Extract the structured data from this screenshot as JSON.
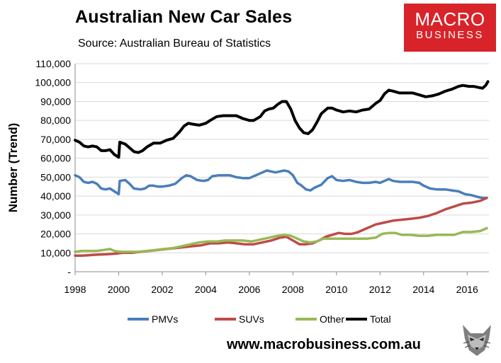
{
  "header": {
    "title": "Australian New Car Sales",
    "subtitle": "Source: Australian Bureau of Statistics"
  },
  "logo": {
    "line1": "MACRO",
    "line2": "BUSINESS",
    "bg_color": "#d8232a"
  },
  "footer": {
    "url": "www.macrobusiness.com.au",
    "icon": "wolf-icon"
  },
  "chart_data": {
    "type": "line",
    "title": "Australian New Car Sales",
    "xlabel": "",
    "ylabel": "Number (Trend)",
    "xlim": [
      1998,
      2017
    ],
    "ylim": [
      0,
      110000
    ],
    "x_ticks": [
      1998,
      2000,
      2002,
      2004,
      2006,
      2008,
      2010,
      2012,
      2014,
      2016
    ],
    "x_tick_labels": [
      "1998",
      "2000",
      "2002",
      "2004",
      "2006",
      "2008",
      "2010",
      "2012",
      "2014",
      "2016"
    ],
    "y_ticks": [
      0,
      10000,
      20000,
      30000,
      40000,
      50000,
      60000,
      70000,
      80000,
      90000,
      100000,
      110000
    ],
    "y_tick_labels": [
      "-",
      "10,000",
      "20,000",
      "30,000",
      "40,000",
      "50,000",
      "60,000",
      "70,000",
      "80,000",
      "90,000",
      "100,000",
      "110,000"
    ],
    "grid": "horizontal",
    "legend_position": "bottom",
    "series": [
      {
        "name": "PMVs",
        "color": "#4a7ebb",
        "points": [
          [
            1998.0,
            51000
          ],
          [
            1998.2,
            50000
          ],
          [
            1998.4,
            47500
          ],
          [
            1998.6,
            47000
          ],
          [
            1998.8,
            47500
          ],
          [
            1999.0,
            46500
          ],
          [
            1999.2,
            44000
          ],
          [
            1999.4,
            43500
          ],
          [
            1999.6,
            44000
          ],
          [
            1999.8,
            42500
          ],
          [
            2000.0,
            41000
          ],
          [
            2000.05,
            48000
          ],
          [
            2000.3,
            48500
          ],
          [
            2000.5,
            46500
          ],
          [
            2000.7,
            44000
          ],
          [
            2001.0,
            43500
          ],
          [
            2001.2,
            44000
          ],
          [
            2001.4,
            45500
          ],
          [
            2001.6,
            45500
          ],
          [
            2001.8,
            45000
          ],
          [
            2002.0,
            45000
          ],
          [
            2002.3,
            45500
          ],
          [
            2002.6,
            46500
          ],
          [
            2002.9,
            49500
          ],
          [
            2003.1,
            51000
          ],
          [
            2003.3,
            50500
          ],
          [
            2003.6,
            48500
          ],
          [
            2003.9,
            48000
          ],
          [
            2004.1,
            48500
          ],
          [
            2004.3,
            50500
          ],
          [
            2004.6,
            51000
          ],
          [
            2004.9,
            51000
          ],
          [
            2005.1,
            51000
          ],
          [
            2005.4,
            50000
          ],
          [
            2005.7,
            49500
          ],
          [
            2006.0,
            49500
          ],
          [
            2006.3,
            51000
          ],
          [
            2006.6,
            52500
          ],
          [
            2006.8,
            53500
          ],
          [
            2007.0,
            53000
          ],
          [
            2007.2,
            52500
          ],
          [
            2007.4,
            53000
          ],
          [
            2007.6,
            53500
          ],
          [
            2007.8,
            53000
          ],
          [
            2008.0,
            51000
          ],
          [
            2008.2,
            47000
          ],
          [
            2008.4,
            45500
          ],
          [
            2008.6,
            43500
          ],
          [
            2008.8,
            43000
          ],
          [
            2009.0,
            44500
          ],
          [
            2009.3,
            46000
          ],
          [
            2009.6,
            49500
          ],
          [
            2009.8,
            50500
          ],
          [
            2010.0,
            48500
          ],
          [
            2010.3,
            48000
          ],
          [
            2010.6,
            48500
          ],
          [
            2010.9,
            47500
          ],
          [
            2011.2,
            47000
          ],
          [
            2011.5,
            47000
          ],
          [
            2011.8,
            47500
          ],
          [
            2012.0,
            47000
          ],
          [
            2012.2,
            48000
          ],
          [
            2012.4,
            49000
          ],
          [
            2012.6,
            48000
          ],
          [
            2012.9,
            47500
          ],
          [
            2013.2,
            47500
          ],
          [
            2013.5,
            47500
          ],
          [
            2013.8,
            47000
          ],
          [
            2014.0,
            45500
          ],
          [
            2014.3,
            44000
          ],
          [
            2014.6,
            43500
          ],
          [
            2015.0,
            43500
          ],
          [
            2015.3,
            43000
          ],
          [
            2015.6,
            42500
          ],
          [
            2015.9,
            41000
          ],
          [
            2016.2,
            40500
          ],
          [
            2016.5,
            39500
          ],
          [
            2016.7,
            39000
          ],
          [
            2016.9,
            39000
          ]
        ]
      },
      {
        "name": "SUVs",
        "color": "#be4b48",
        "points": [
          [
            1998.0,
            8500
          ],
          [
            1998.3,
            8500
          ],
          [
            1998.6,
            8700
          ],
          [
            1999.0,
            9000
          ],
          [
            1999.4,
            9200
          ],
          [
            1999.8,
            9500
          ],
          [
            2000.2,
            10000
          ],
          [
            2000.6,
            10000
          ],
          [
            2001.0,
            10500
          ],
          [
            2001.4,
            11000
          ],
          [
            2001.8,
            11500
          ],
          [
            2002.2,
            12000
          ],
          [
            2002.6,
            12500
          ],
          [
            2003.0,
            13000
          ],
          [
            2003.4,
            13500
          ],
          [
            2003.8,
            14000
          ],
          [
            2004.2,
            15000
          ],
          [
            2004.6,
            15000
          ],
          [
            2005.0,
            15500
          ],
          [
            2005.4,
            15000
          ],
          [
            2005.8,
            14500
          ],
          [
            2006.2,
            14500
          ],
          [
            2006.6,
            15500
          ],
          [
            2007.0,
            16500
          ],
          [
            2007.4,
            18000
          ],
          [
            2007.7,
            18500
          ],
          [
            2008.0,
            16500
          ],
          [
            2008.3,
            14500
          ],
          [
            2008.6,
            14500
          ],
          [
            2008.9,
            15000
          ],
          [
            2009.2,
            16500
          ],
          [
            2009.5,
            18500
          ],
          [
            2009.8,
            19500
          ],
          [
            2010.1,
            20500
          ],
          [
            2010.4,
            20000
          ],
          [
            2010.7,
            20000
          ],
          [
            2011.0,
            21000
          ],
          [
            2011.4,
            23000
          ],
          [
            2011.8,
            25000
          ],
          [
            2012.2,
            26000
          ],
          [
            2012.6,
            27000
          ],
          [
            2013.0,
            27500
          ],
          [
            2013.4,
            28000
          ],
          [
            2013.8,
            28500
          ],
          [
            2014.2,
            29500
          ],
          [
            2014.6,
            31000
          ],
          [
            2015.0,
            33000
          ],
          [
            2015.4,
            34500
          ],
          [
            2015.8,
            36000
          ],
          [
            2016.2,
            36500
          ],
          [
            2016.6,
            37500
          ],
          [
            2016.9,
            39000
          ]
        ]
      },
      {
        "name": "Other",
        "color": "#98b954",
        "points": [
          [
            1998.0,
            10500
          ],
          [
            1998.3,
            11000
          ],
          [
            1998.6,
            11000
          ],
          [
            1999.0,
            11000
          ],
          [
            1999.3,
            11500
          ],
          [
            1999.6,
            12000
          ],
          [
            1999.8,
            11000
          ],
          [
            2000.1,
            10500
          ],
          [
            2000.5,
            10500
          ],
          [
            2000.9,
            10500
          ],
          [
            2001.3,
            11000
          ],
          [
            2001.7,
            11500
          ],
          [
            2002.1,
            12000
          ],
          [
            2002.5,
            12500
          ],
          [
            2002.9,
            13500
          ],
          [
            2003.3,
            14500
          ],
          [
            2003.7,
            15500
          ],
          [
            2004.1,
            16000
          ],
          [
            2004.5,
            16000
          ],
          [
            2004.9,
            16500
          ],
          [
            2005.3,
            16500
          ],
          [
            2005.7,
            16500
          ],
          [
            2006.1,
            16000
          ],
          [
            2006.5,
            17000
          ],
          [
            2006.9,
            18000
          ],
          [
            2007.3,
            19000
          ],
          [
            2007.6,
            19500
          ],
          [
            2007.9,
            19000
          ],
          [
            2008.2,
            17500
          ],
          [
            2008.5,
            16000
          ],
          [
            2008.8,
            15500
          ],
          [
            2009.1,
            16000
          ],
          [
            2009.4,
            17500
          ],
          [
            2009.8,
            17500
          ],
          [
            2010.2,
            17500
          ],
          [
            2010.6,
            17500
          ],
          [
            2011.0,
            17500
          ],
          [
            2011.4,
            17500
          ],
          [
            2011.8,
            18000
          ],
          [
            2012.1,
            20000
          ],
          [
            2012.4,
            20500
          ],
          [
            2012.7,
            20500
          ],
          [
            2013.0,
            19500
          ],
          [
            2013.4,
            19500
          ],
          [
            2013.8,
            19000
          ],
          [
            2014.2,
            19000
          ],
          [
            2014.6,
            19500
          ],
          [
            2015.0,
            19500
          ],
          [
            2015.4,
            19500
          ],
          [
            2015.8,
            21000
          ],
          [
            2016.2,
            21000
          ],
          [
            2016.6,
            21500
          ],
          [
            2016.9,
            23000
          ]
        ]
      },
      {
        "name": "Total",
        "color": "#000000",
        "points": [
          [
            1998.0,
            69500
          ],
          [
            1998.2,
            68500
          ],
          [
            1998.4,
            66500
          ],
          [
            1998.6,
            66000
          ],
          [
            1998.8,
            66500
          ],
          [
            1999.0,
            66000
          ],
          [
            1999.2,
            64000
          ],
          [
            1999.4,
            64000
          ],
          [
            1999.6,
            64500
          ],
          [
            1999.8,
            62000
          ],
          [
            2000.0,
            60500
          ],
          [
            2000.05,
            68500
          ],
          [
            2000.3,
            67500
          ],
          [
            2000.5,
            65500
          ],
          [
            2000.7,
            63500
          ],
          [
            2000.9,
            63000
          ],
          [
            2001.1,
            64000
          ],
          [
            2001.3,
            66000
          ],
          [
            2001.6,
            68000
          ],
          [
            2001.9,
            68000
          ],
          [
            2002.2,
            69500
          ],
          [
            2002.5,
            70500
          ],
          [
            2002.8,
            74000
          ],
          [
            2003.0,
            77000
          ],
          [
            2003.2,
            78500
          ],
          [
            2003.4,
            78000
          ],
          [
            2003.7,
            77500
          ],
          [
            2004.0,
            78500
          ],
          [
            2004.2,
            80000
          ],
          [
            2004.5,
            82000
          ],
          [
            2004.8,
            82500
          ],
          [
            2005.1,
            82500
          ],
          [
            2005.4,
            82500
          ],
          [
            2005.7,
            81000
          ],
          [
            2006.0,
            80000
          ],
          [
            2006.2,
            80000
          ],
          [
            2006.5,
            82000
          ],
          [
            2006.7,
            85000
          ],
          [
            2006.9,
            86000
          ],
          [
            2007.1,
            86500
          ],
          [
            2007.3,
            88500
          ],
          [
            2007.5,
            90000
          ],
          [
            2007.7,
            90000
          ],
          [
            2007.9,
            86000
          ],
          [
            2008.1,
            80000
          ],
          [
            2008.3,
            76000
          ],
          [
            2008.5,
            73500
          ],
          [
            2008.7,
            73000
          ],
          [
            2008.9,
            75000
          ],
          [
            2009.1,
            79000
          ],
          [
            2009.3,
            83500
          ],
          [
            2009.6,
            86500
          ],
          [
            2009.8,
            86500
          ],
          [
            2010.0,
            85500
          ],
          [
            2010.3,
            84500
          ],
          [
            2010.6,
            85000
          ],
          [
            2010.9,
            84500
          ],
          [
            2011.2,
            85500
          ],
          [
            2011.5,
            86000
          ],
          [
            2011.8,
            89000
          ],
          [
            2012.0,
            90500
          ],
          [
            2012.2,
            94000
          ],
          [
            2012.4,
            96000
          ],
          [
            2012.6,
            95500
          ],
          [
            2012.9,
            94500
          ],
          [
            2013.2,
            94500
          ],
          [
            2013.5,
            94500
          ],
          [
            2013.8,
            93500
          ],
          [
            2014.1,
            92500
          ],
          [
            2014.4,
            93000
          ],
          [
            2014.7,
            94000
          ],
          [
            2015.0,
            95500
          ],
          [
            2015.3,
            96500
          ],
          [
            2015.6,
            98000
          ],
          [
            2015.8,
            98500
          ],
          [
            2016.1,
            98000
          ],
          [
            2016.3,
            98000
          ],
          [
            2016.5,
            97500
          ],
          [
            2016.7,
            97000
          ],
          [
            2016.85,
            98500
          ],
          [
            2016.95,
            100500
          ]
        ]
      }
    ]
  }
}
